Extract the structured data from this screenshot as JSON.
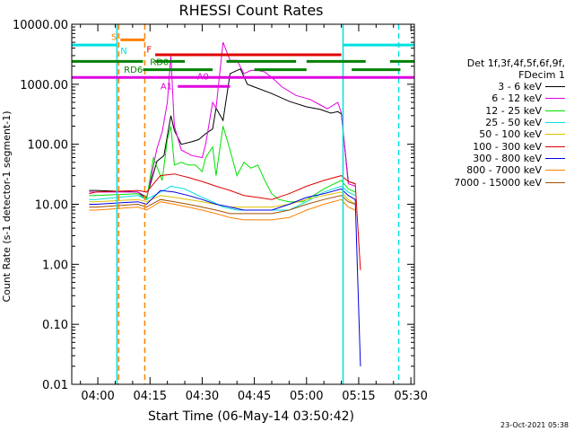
{
  "chart_data": {
    "type": "line",
    "title": "RHESSI Count Rates",
    "xlabel": "Start Time (06-May-14 03:50:42)",
    "ylabel": "Count Rate (s-1 detector-1 segment-1)",
    "y_scale": "log",
    "ylim": [
      0.01,
      10000
    ],
    "xlim_minutes_after_04_00": [
      -7.5,
      91
    ],
    "y_ticks": [
      "10000.00",
      "1000.00",
      "100.00",
      "10.00",
      "1.00",
      "0.10",
      "0.01"
    ],
    "x_ticks": [
      "04:00",
      "04:15",
      "04:30",
      "04:45",
      "05:00",
      "05:15",
      "05:30"
    ],
    "legend": {
      "header": [
        "Det 1f,3f,4f,5f,6f,9f,",
        "FDecim 1"
      ],
      "position": "right"
    },
    "series": [
      {
        "name": "3 - 6 keV",
        "color": "#000000",
        "points": [
          [
            -2.5,
            17
          ],
          [
            -0.5,
            17
          ],
          [
            11.5,
            16
          ],
          [
            14,
            13
          ],
          [
            17,
            52
          ],
          [
            19,
            65
          ],
          [
            21,
            300
          ],
          [
            22,
            170
          ],
          [
            24,
            100
          ],
          [
            27,
            110
          ],
          [
            29,
            120
          ],
          [
            31,
            150
          ],
          [
            33,
            180
          ],
          [
            34,
            400
          ],
          [
            36,
            250
          ],
          [
            38,
            1500
          ],
          [
            40,
            1700
          ],
          [
            41,
            1800
          ],
          [
            43,
            1000
          ],
          [
            45,
            900
          ],
          [
            50,
            700
          ],
          [
            55,
            520
          ],
          [
            60,
            420
          ],
          [
            64,
            380
          ],
          [
            67,
            330
          ],
          [
            69,
            350
          ],
          [
            70,
            320
          ],
          [
            72,
            24
          ],
          [
            74,
            22
          ]
        ]
      },
      {
        "name": "6 - 12 keV",
        "color": "#e000e0",
        "points": [
          [
            -2.5,
            16
          ],
          [
            -0.5,
            16
          ],
          [
            11.5,
            16
          ],
          [
            14,
            12
          ],
          [
            17,
            85
          ],
          [
            18.5,
            160
          ],
          [
            20,
            500
          ],
          [
            21,
            3000
          ],
          [
            22,
            200
          ],
          [
            24,
            80
          ],
          [
            27,
            65
          ],
          [
            30,
            60
          ],
          [
            31,
            100
          ],
          [
            33,
            500
          ],
          [
            34,
            400
          ],
          [
            36,
            5000
          ],
          [
            38,
            2500
          ],
          [
            40,
            2500
          ],
          [
            42,
            1500
          ],
          [
            44,
            1700
          ],
          [
            46,
            1700
          ],
          [
            48,
            1600
          ],
          [
            50,
            1300
          ],
          [
            53,
            900
          ],
          [
            57,
            650
          ],
          [
            61,
            560
          ],
          [
            64,
            450
          ],
          [
            66,
            390
          ],
          [
            69,
            500
          ],
          [
            70,
            330
          ],
          [
            72,
            22
          ],
          [
            74,
            20
          ]
        ]
      },
      {
        "name": "12 - 25 keV",
        "color": "#00e000",
        "points": [
          [
            -2.5,
            14
          ],
          [
            -0.5,
            14
          ],
          [
            11.5,
            15
          ],
          [
            14,
            12
          ],
          [
            16,
            60
          ],
          [
            18.5,
            25
          ],
          [
            20,
            120
          ],
          [
            21,
            200
          ],
          [
            22,
            45
          ],
          [
            24,
            50
          ],
          [
            26,
            45
          ],
          [
            28,
            45
          ],
          [
            30,
            35
          ],
          [
            31,
            60
          ],
          [
            33,
            90
          ],
          [
            34,
            30
          ],
          [
            36,
            200
          ],
          [
            38,
            80
          ],
          [
            40,
            30
          ],
          [
            42,
            50
          ],
          [
            44,
            40
          ],
          [
            46,
            45
          ],
          [
            48,
            25
          ],
          [
            50,
            15
          ],
          [
            52,
            12
          ],
          [
            55,
            11
          ],
          [
            59,
            11
          ],
          [
            62,
            14
          ],
          [
            65,
            18
          ],
          [
            68,
            22
          ],
          [
            70,
            25
          ],
          [
            72,
            18
          ],
          [
            74,
            16
          ]
        ]
      },
      {
        "name": "25 - 50 keV",
        "color": "#00e0e0",
        "points": [
          [
            -2.5,
            12
          ],
          [
            -0.5,
            12
          ],
          [
            11.5,
            14
          ],
          [
            14,
            12
          ],
          [
            18,
            16
          ],
          [
            21,
            20
          ],
          [
            25,
            18
          ],
          [
            30,
            13
          ],
          [
            33,
            11
          ],
          [
            36,
            9
          ],
          [
            40,
            8
          ],
          [
            44,
            8
          ],
          [
            48,
            8
          ],
          [
            50,
            8
          ],
          [
            55,
            8
          ],
          [
            60,
            11
          ],
          [
            65,
            16
          ],
          [
            70,
            20
          ],
          [
            72,
            16
          ],
          [
            74,
            14
          ]
        ]
      },
      {
        "name": "50 - 100 keV",
        "color": "#e0c000",
        "points": [
          [
            -2.5,
            11
          ],
          [
            -0.5,
            11
          ],
          [
            11.5,
            12
          ],
          [
            14,
            11
          ],
          [
            18,
            14
          ],
          [
            22,
            13
          ],
          [
            26,
            12
          ],
          [
            30,
            11
          ],
          [
            34,
            10
          ],
          [
            38,
            9
          ],
          [
            42,
            9
          ],
          [
            46,
            9
          ],
          [
            50,
            9
          ],
          [
            55,
            10
          ],
          [
            60,
            12
          ],
          [
            65,
            14
          ],
          [
            70,
            16
          ],
          [
            72,
            12
          ],
          [
            74,
            10
          ]
        ]
      },
      {
        "name": "100 - 300 keV",
        "color": "#e00000",
        "points": [
          [
            -2.5,
            15
          ],
          [
            -0.5,
            16
          ],
          [
            11.5,
            17
          ],
          [
            14,
            16
          ],
          [
            18,
            30
          ],
          [
            22,
            32
          ],
          [
            26,
            28
          ],
          [
            30,
            24
          ],
          [
            34,
            20
          ],
          [
            38,
            17
          ],
          [
            42,
            14
          ],
          [
            46,
            13
          ],
          [
            50,
            12
          ],
          [
            55,
            15
          ],
          [
            60,
            20
          ],
          [
            65,
            25
          ],
          [
            70,
            30
          ],
          [
            72,
            24
          ],
          [
            74,
            22
          ],
          [
            75.5,
            0.8
          ]
        ]
      },
      {
        "name": "300 - 800 keV",
        "color": "#0000e0",
        "points": [
          [
            -2.5,
            10
          ],
          [
            -0.5,
            10
          ],
          [
            11.5,
            11
          ],
          [
            14,
            10
          ],
          [
            18,
            17
          ],
          [
            22,
            16
          ],
          [
            26,
            14
          ],
          [
            30,
            12
          ],
          [
            34,
            10
          ],
          [
            38,
            9
          ],
          [
            42,
            8
          ],
          [
            46,
            8
          ],
          [
            50,
            8
          ],
          [
            55,
            10
          ],
          [
            60,
            13
          ],
          [
            65,
            15
          ],
          [
            70,
            18
          ],
          [
            72,
            14
          ],
          [
            74,
            12
          ],
          [
            75.5,
            0.02
          ]
        ]
      },
      {
        "name": "800 - 7000 keV",
        "color": "#ff8000",
        "points": [
          [
            -2.5,
            8
          ],
          [
            -0.5,
            8
          ],
          [
            11.5,
            9
          ],
          [
            14,
            8
          ],
          [
            18,
            11
          ],
          [
            22,
            10
          ],
          [
            26,
            9
          ],
          [
            30,
            8
          ],
          [
            34,
            7
          ],
          [
            38,
            6
          ],
          [
            42,
            5.5
          ],
          [
            46,
            5.5
          ],
          [
            50,
            5.5
          ],
          [
            55,
            6
          ],
          [
            60,
            8
          ],
          [
            65,
            10
          ],
          [
            70,
            12
          ],
          [
            72,
            9
          ],
          [
            74,
            8
          ]
        ]
      },
      {
        "name": "7000 - 15000 keV",
        "color": "#a05000",
        "points": [
          [
            -2.5,
            9
          ],
          [
            -0.5,
            9
          ],
          [
            11.5,
            10
          ],
          [
            14,
            9
          ],
          [
            18,
            12
          ],
          [
            22,
            11
          ],
          [
            26,
            10
          ],
          [
            30,
            9
          ],
          [
            34,
            8
          ],
          [
            38,
            7
          ],
          [
            42,
            7
          ],
          [
            46,
            7
          ],
          [
            50,
            7
          ],
          [
            55,
            8
          ],
          [
            60,
            10
          ],
          [
            65,
            12
          ],
          [
            70,
            14
          ],
          [
            72,
            11
          ],
          [
            74,
            10
          ]
        ]
      }
    ],
    "annotations": [
      {
        "label": "",
        "color": "#00e0e0",
        "y": 4500,
        "x_ranges": [
          [
            -7.5,
            5.5
          ],
          [
            70.5,
            91
          ]
        ]
      },
      {
        "label": "S",
        "color": "#ff8000",
        "y": 5500,
        "x_ranges": [
          [
            6.5,
            13.5
          ]
        ]
      },
      {
        "label": "N",
        "color": "#00e0e0",
        "y": 4500,
        "x_ranges": []
      },
      {
        "label": "F",
        "color": "#e00000",
        "y": 3100,
        "x_ranges": [
          [
            16.5,
            70
          ]
        ]
      },
      {
        "label": "RD0",
        "color": "#008000",
        "y": 2400,
        "x_ranges": [
          [
            -7.5,
            13
          ],
          [
            16.5,
            25
          ],
          [
            37,
            57
          ],
          [
            60,
            77
          ],
          [
            84,
            91
          ]
        ]
      },
      {
        "label": "RD6",
        "color": "#008000",
        "y": 1750,
        "x_ranges": [
          [
            13,
            33
          ],
          [
            45,
            60
          ],
          [
            73,
            87
          ]
        ]
      },
      {
        "label": "A0",
        "color": "#e000e0",
        "y": 1300,
        "x_ranges": [
          [
            -7.5,
            91
          ]
        ]
      },
      {
        "label": "A1",
        "color": "#e000e0",
        "y": 920,
        "x_ranges": [
          [
            23,
            38
          ]
        ]
      }
    ],
    "vertical_lines": [
      {
        "x": 5.5,
        "color": "#00e0e0",
        "style": "solid"
      },
      {
        "x": 6,
        "color": "#ff8000",
        "style": "dashed"
      },
      {
        "x": 13.5,
        "color": "#ff8000",
        "style": "dashed"
      },
      {
        "x": 70.5,
        "color": "#00e0e0",
        "style": "solid"
      },
      {
        "x": 86.5,
        "color": "#00e0e0",
        "style": "dashed"
      }
    ],
    "timestamp": "23-Oct-2021 05:38"
  }
}
